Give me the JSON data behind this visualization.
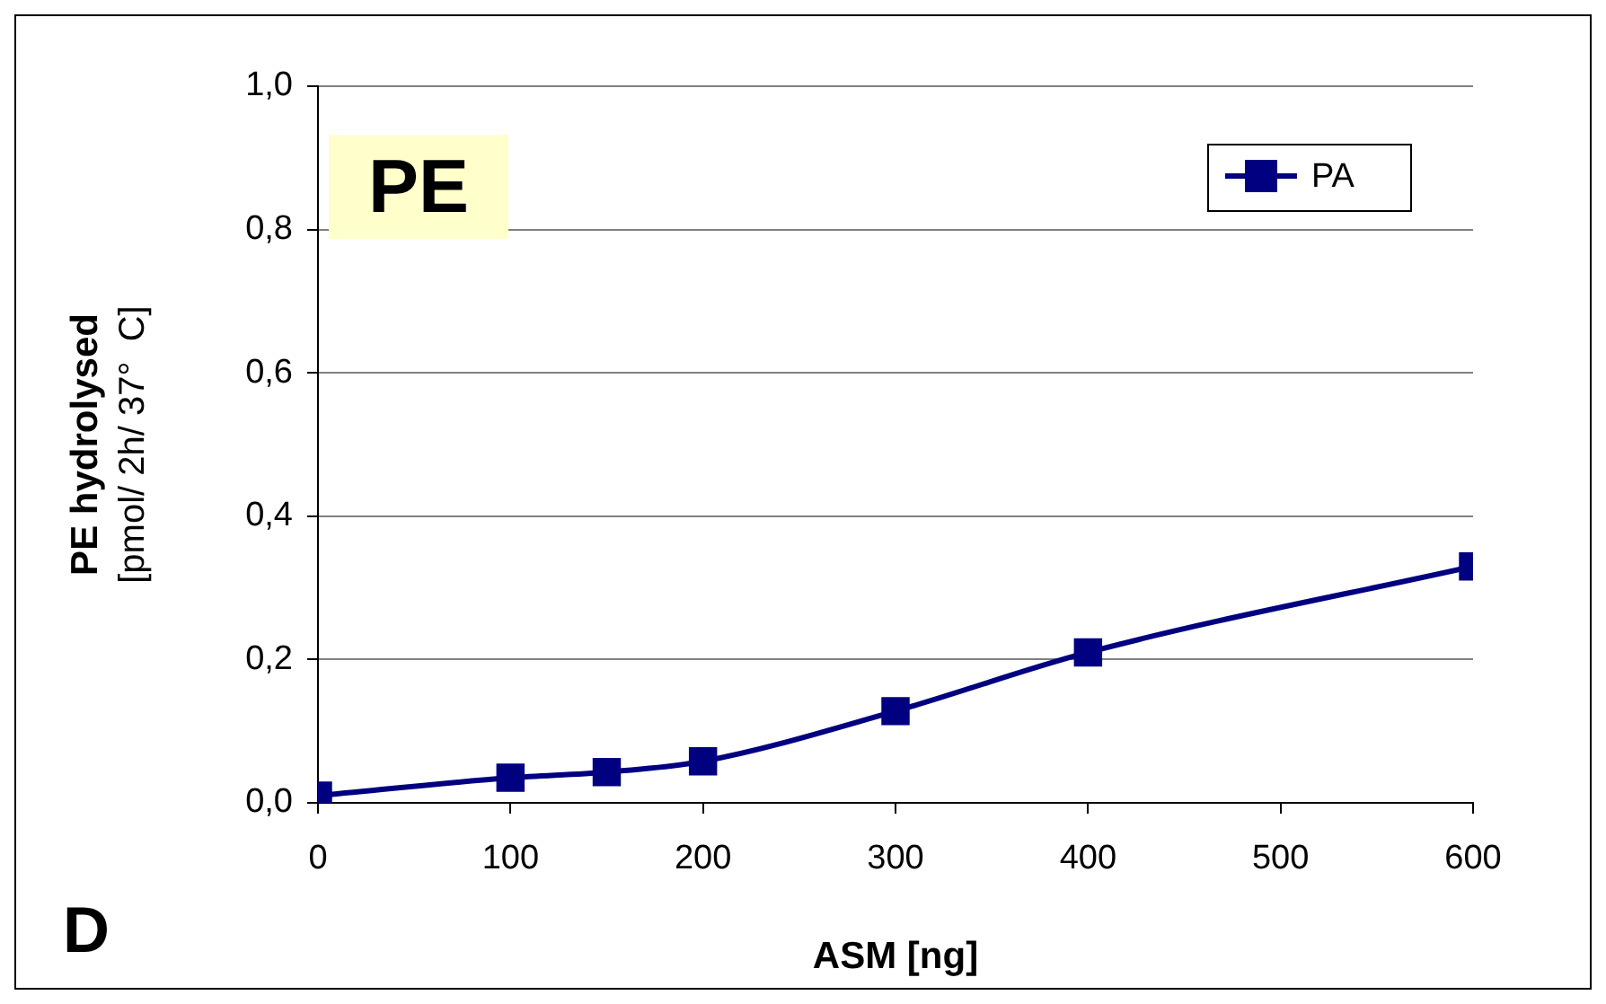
{
  "chart_data": {
    "type": "line",
    "xlabel": "ASM [ng]",
    "ylabel": "PE hydrolysed\n[pmol/ 2h/ 37°  C]",
    "annotations": [
      "PE",
      "D"
    ],
    "x": [
      0,
      100,
      150,
      200,
      300,
      400,
      600
    ],
    "series": [
      {
        "name": "PA",
        "color": "#000080",
        "values": [
          0.01,
          0.035,
          0.043,
          0.058,
          0.128,
          0.21,
          0.33
        ]
      }
    ],
    "xlim": [
      0,
      600
    ],
    "xticks": [
      0,
      100,
      200,
      300,
      400,
      500,
      600
    ],
    "ylim": [
      0,
      1
    ],
    "yticks": [
      {
        "value": 0,
        "label": "0,0"
      },
      {
        "value": 0.2,
        "label": "0,2"
      },
      {
        "value": 0.4,
        "label": "0,4"
      },
      {
        "value": 0.6,
        "label": "0,6"
      },
      {
        "value": 0.8,
        "label": "0,8"
      },
      {
        "value": 1,
        "label": "1,0"
      }
    ],
    "grid": "y",
    "legend": "top right",
    "marker": "square",
    "line_style": "solid"
  }
}
